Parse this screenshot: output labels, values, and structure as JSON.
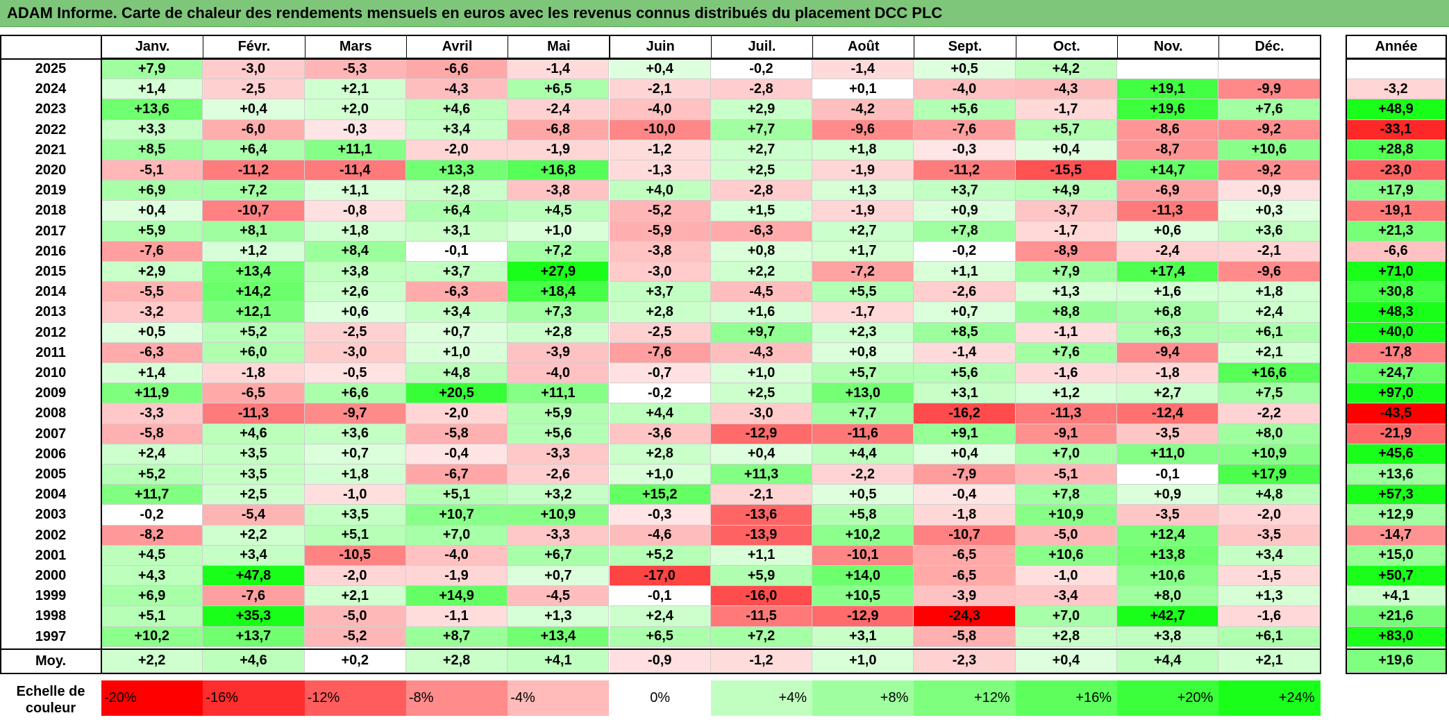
{
  "title": "ADAM Informe. Carte de chaleur des rendements mensuels en euros avec les revenus connus distribués du placement DCC PLC",
  "chart_data": {
    "type": "heatmap",
    "title": "ADAM Informe. Carte de chaleur des rendements mensuels en euros avec les revenus connus distribués du placement DCC PLC",
    "months": [
      "Janv.",
      "Févr.",
      "Mars",
      "Avril",
      "Mai",
      "Juin",
      "Juil.",
      "Août",
      "Sept.",
      "Oct.",
      "Nov.",
      "Déc."
    ],
    "year_header": "Année",
    "rows": [
      {
        "year": "2025",
        "values": [
          "+7,9",
          "-3,0",
          "-5,3",
          "-6,6",
          "-1,4",
          "+0,4",
          "-0,2",
          "-1,4",
          "+0,5",
          "+4,2",
          "",
          ""
        ],
        "annual": ""
      },
      {
        "year": "2024",
        "values": [
          "+1,4",
          "-2,5",
          "+2,1",
          "-4,3",
          "+6,5",
          "-2,1",
          "-2,8",
          "+0,1",
          "-4,0",
          "-4,3",
          "+19,1",
          "-9,9"
        ],
        "annual": "-3,2"
      },
      {
        "year": "2023",
        "values": [
          "+13,6",
          "+0,4",
          "+2,0",
          "+4,6",
          "-2,4",
          "-4,0",
          "+2,9",
          "-4,2",
          "+5,6",
          "-1,7",
          "+19,6",
          "+7,6"
        ],
        "annual": "+48,9"
      },
      {
        "year": "2022",
        "values": [
          "+3,3",
          "-6,0",
          "-0,3",
          "+3,4",
          "-6,8",
          "-10,0",
          "+7,7",
          "-9,6",
          "-7,6",
          "+5,7",
          "-8,6",
          "-9,2"
        ],
        "annual": "-33,1"
      },
      {
        "year": "2021",
        "values": [
          "+8,5",
          "+6,4",
          "+11,1",
          "-2,0",
          "-1,9",
          "-1,2",
          "+2,7",
          "+1,8",
          "-0,3",
          "+0,4",
          "-8,7",
          "+10,6"
        ],
        "annual": "+28,8"
      },
      {
        "year": "2020",
        "values": [
          "-5,1",
          "-11,2",
          "-11,4",
          "+13,3",
          "+16,8",
          "-1,3",
          "+2,5",
          "-1,9",
          "-11,2",
          "-15,5",
          "+14,7",
          "-9,2"
        ],
        "annual": "-23,0"
      },
      {
        "year": "2019",
        "values": [
          "+6,9",
          "+7,2",
          "+1,1",
          "+2,8",
          "-3,8",
          "+4,0",
          "-2,8",
          "+1,3",
          "+3,7",
          "+4,9",
          "-6,9",
          "-0,9"
        ],
        "annual": "+17,9"
      },
      {
        "year": "2018",
        "values": [
          "+0,4",
          "-10,7",
          "-0,8",
          "+6,4",
          "+4,5",
          "-5,2",
          "+1,5",
          "-1,9",
          "+0,9",
          "-3,7",
          "-11,3",
          "+0,3"
        ],
        "annual": "-19,1"
      },
      {
        "year": "2017",
        "values": [
          "+5,9",
          "+8,1",
          "+1,8",
          "+3,1",
          "+1,0",
          "-5,9",
          "-6,3",
          "+2,7",
          "+7,8",
          "-1,7",
          "+0,6",
          "+3,6"
        ],
        "annual": "+21,3"
      },
      {
        "year": "2016",
        "values": [
          "-7,6",
          "+1,2",
          "+8,4",
          "-0,1",
          "+7,2",
          "-3,8",
          "+0,8",
          "+1,7",
          "-0,2",
          "-8,9",
          "-2,4",
          "-2,1"
        ],
        "annual": "-6,6"
      },
      {
        "year": "2015",
        "values": [
          "+2,9",
          "+13,4",
          "+3,8",
          "+3,7",
          "+27,9",
          "-3,0",
          "+2,2",
          "-7,2",
          "+1,1",
          "+7,9",
          "+17,4",
          "-9,6"
        ],
        "annual": "+71,0"
      },
      {
        "year": "2014",
        "values": [
          "-5,5",
          "+14,2",
          "+2,6",
          "-6,3",
          "+18,4",
          "+3,7",
          "-4,5",
          "+5,5",
          "-2,6",
          "+1,3",
          "+1,6",
          "+1,8"
        ],
        "annual": "+30,8"
      },
      {
        "year": "2013",
        "values": [
          "-3,2",
          "+12,1",
          "+0,6",
          "+3,4",
          "+7,3",
          "+2,8",
          "+1,6",
          "-1,7",
          "+0,7",
          "+8,8",
          "+6,8",
          "+2,4"
        ],
        "annual": "+48,3"
      },
      {
        "year": "2012",
        "values": [
          "+0,5",
          "+5,2",
          "-2,5",
          "+0,7",
          "+2,8",
          "-2,5",
          "+9,7",
          "+2,3",
          "+8,5",
          "-1,1",
          "+6,3",
          "+6,1"
        ],
        "annual": "+40,0"
      },
      {
        "year": "2011",
        "values": [
          "-6,3",
          "+6,0",
          "-3,0",
          "+1,0",
          "-3,9",
          "-7,6",
          "-4,3",
          "+0,8",
          "-1,4",
          "+7,6",
          "-9,4",
          "+2,1"
        ],
        "annual": "-17,8"
      },
      {
        "year": "2010",
        "values": [
          "+1,4",
          "-1,8",
          "-0,5",
          "+4,8",
          "-4,0",
          "-0,7",
          "+1,0",
          "+5,7",
          "+5,6",
          "-1,6",
          "-1,8",
          "+16,6"
        ],
        "annual": "+24,7"
      },
      {
        "year": "2009",
        "values": [
          "+11,9",
          "-6,5",
          "+6,6",
          "+20,5",
          "+11,1",
          "-0,2",
          "+2,5",
          "+13,0",
          "+3,1",
          "+1,2",
          "+2,7",
          "+7,5"
        ],
        "annual": "+97,0"
      },
      {
        "year": "2008",
        "values": [
          "-3,3",
          "-11,3",
          "-9,7",
          "-2,0",
          "+5,9",
          "+4,4",
          "-3,0",
          "+7,7",
          "-16,2",
          "-11,3",
          "-12,4",
          "-2,2"
        ],
        "annual": "-43,5"
      },
      {
        "year": "2007",
        "values": [
          "-5,8",
          "+4,6",
          "+3,6",
          "-5,8",
          "+5,6",
          "-3,6",
          "-12,9",
          "-11,6",
          "+9,1",
          "-9,1",
          "-3,5",
          "+8,0"
        ],
        "annual": "-21,9"
      },
      {
        "year": "2006",
        "values": [
          "+2,4",
          "+3,5",
          "+0,7",
          "-0,4",
          "-3,3",
          "+2,8",
          "+0,4",
          "+4,4",
          "+0,4",
          "+7,0",
          "+11,0",
          "+10,9"
        ],
        "annual": "+45,6"
      },
      {
        "year": "2005",
        "values": [
          "+5,2",
          "+3,5",
          "+1,8",
          "-6,7",
          "-2,6",
          "+1,0",
          "+11,3",
          "-2,2",
          "-7,9",
          "-5,1",
          "-0,1",
          "+17,9"
        ],
        "annual": "+13,6"
      },
      {
        "year": "2004",
        "values": [
          "+11,7",
          "+2,5",
          "-1,0",
          "+5,1",
          "+3,2",
          "+15,2",
          "-2,1",
          "+0,5",
          "-0,4",
          "+7,8",
          "+0,9",
          "+4,8"
        ],
        "annual": "+57,3"
      },
      {
        "year": "2003",
        "values": [
          "-0,2",
          "-5,4",
          "+3,5",
          "+10,7",
          "+10,9",
          "-0,3",
          "-13,6",
          "+5,8",
          "-1,8",
          "+10,9",
          "-3,5",
          "-2,0"
        ],
        "annual": "+12,9"
      },
      {
        "year": "2002",
        "values": [
          "-8,2",
          "+2,2",
          "+5,1",
          "+7,0",
          "-3,3",
          "-4,6",
          "-13,9",
          "+10,2",
          "-10,7",
          "-5,0",
          "+12,4",
          "-3,5"
        ],
        "annual": "-14,7"
      },
      {
        "year": "2001",
        "values": [
          "+4,5",
          "+3,4",
          "-10,5",
          "-4,0",
          "+6,7",
          "+5,2",
          "+1,1",
          "-10,1",
          "-6,5",
          "+10,6",
          "+13,8",
          "+3,4"
        ],
        "annual": "+15,0"
      },
      {
        "year": "2000",
        "values": [
          "+4,3",
          "+47,8",
          "-2,0",
          "-1,9",
          "+0,7",
          "-17,0",
          "+5,9",
          "+14,0",
          "-6,5",
          "-1,0",
          "+10,6",
          "-1,5"
        ],
        "annual": "+50,7"
      },
      {
        "year": "1999",
        "values": [
          "+6,9",
          "-7,6",
          "+2,1",
          "+14,9",
          "-4,5",
          "-0,1",
          "-16,0",
          "+10,5",
          "-3,9",
          "-3,4",
          "+8,0",
          "+1,3"
        ],
        "annual": "+4,1"
      },
      {
        "year": "1998",
        "values": [
          "+5,1",
          "+35,3",
          "-5,0",
          "-1,1",
          "+1,3",
          "+2,4",
          "-11,5",
          "-12,9",
          "-24,3",
          "+7,0",
          "+42,7",
          "-1,6"
        ],
        "annual": "+21,6"
      },
      {
        "year": "1997",
        "values": [
          "+10,2",
          "+13,7",
          "-5,2",
          "+8,7",
          "+13,4",
          "+6,5",
          "+7,2",
          "+3,1",
          "-5,8",
          "+2,8",
          "+3,8",
          "+6,1"
        ],
        "annual": "+83,0"
      }
    ],
    "average": {
      "label": "Moy.",
      "values": [
        "+2,2",
        "+4,6",
        "+0,2",
        "+2,8",
        "+4,1",
        "-0,9",
        "-1,2",
        "+1,0",
        "-2,3",
        "+0,4",
        "+4,4",
        "+2,1"
      ],
      "annual": "+19,6"
    },
    "scale": {
      "label_line1": "Echelle de",
      "label_line2": "couleur",
      "steps": [
        "-20%",
        "-16%",
        "-12%",
        "-8%",
        "-4%",
        "0%",
        "+4%",
        "+8%",
        "+12%",
        "+16%",
        "+20%",
        "+24%"
      ],
      "step_values": [
        -20,
        -16,
        -12,
        -8,
        -4,
        0,
        4,
        8,
        12,
        16,
        20,
        24
      ]
    },
    "colors": {
      "negative_max": "#ff0000",
      "neutral": "#ffffff",
      "positive_max": "#1aff1a",
      "title_bar": "#7ec67a"
    }
  }
}
